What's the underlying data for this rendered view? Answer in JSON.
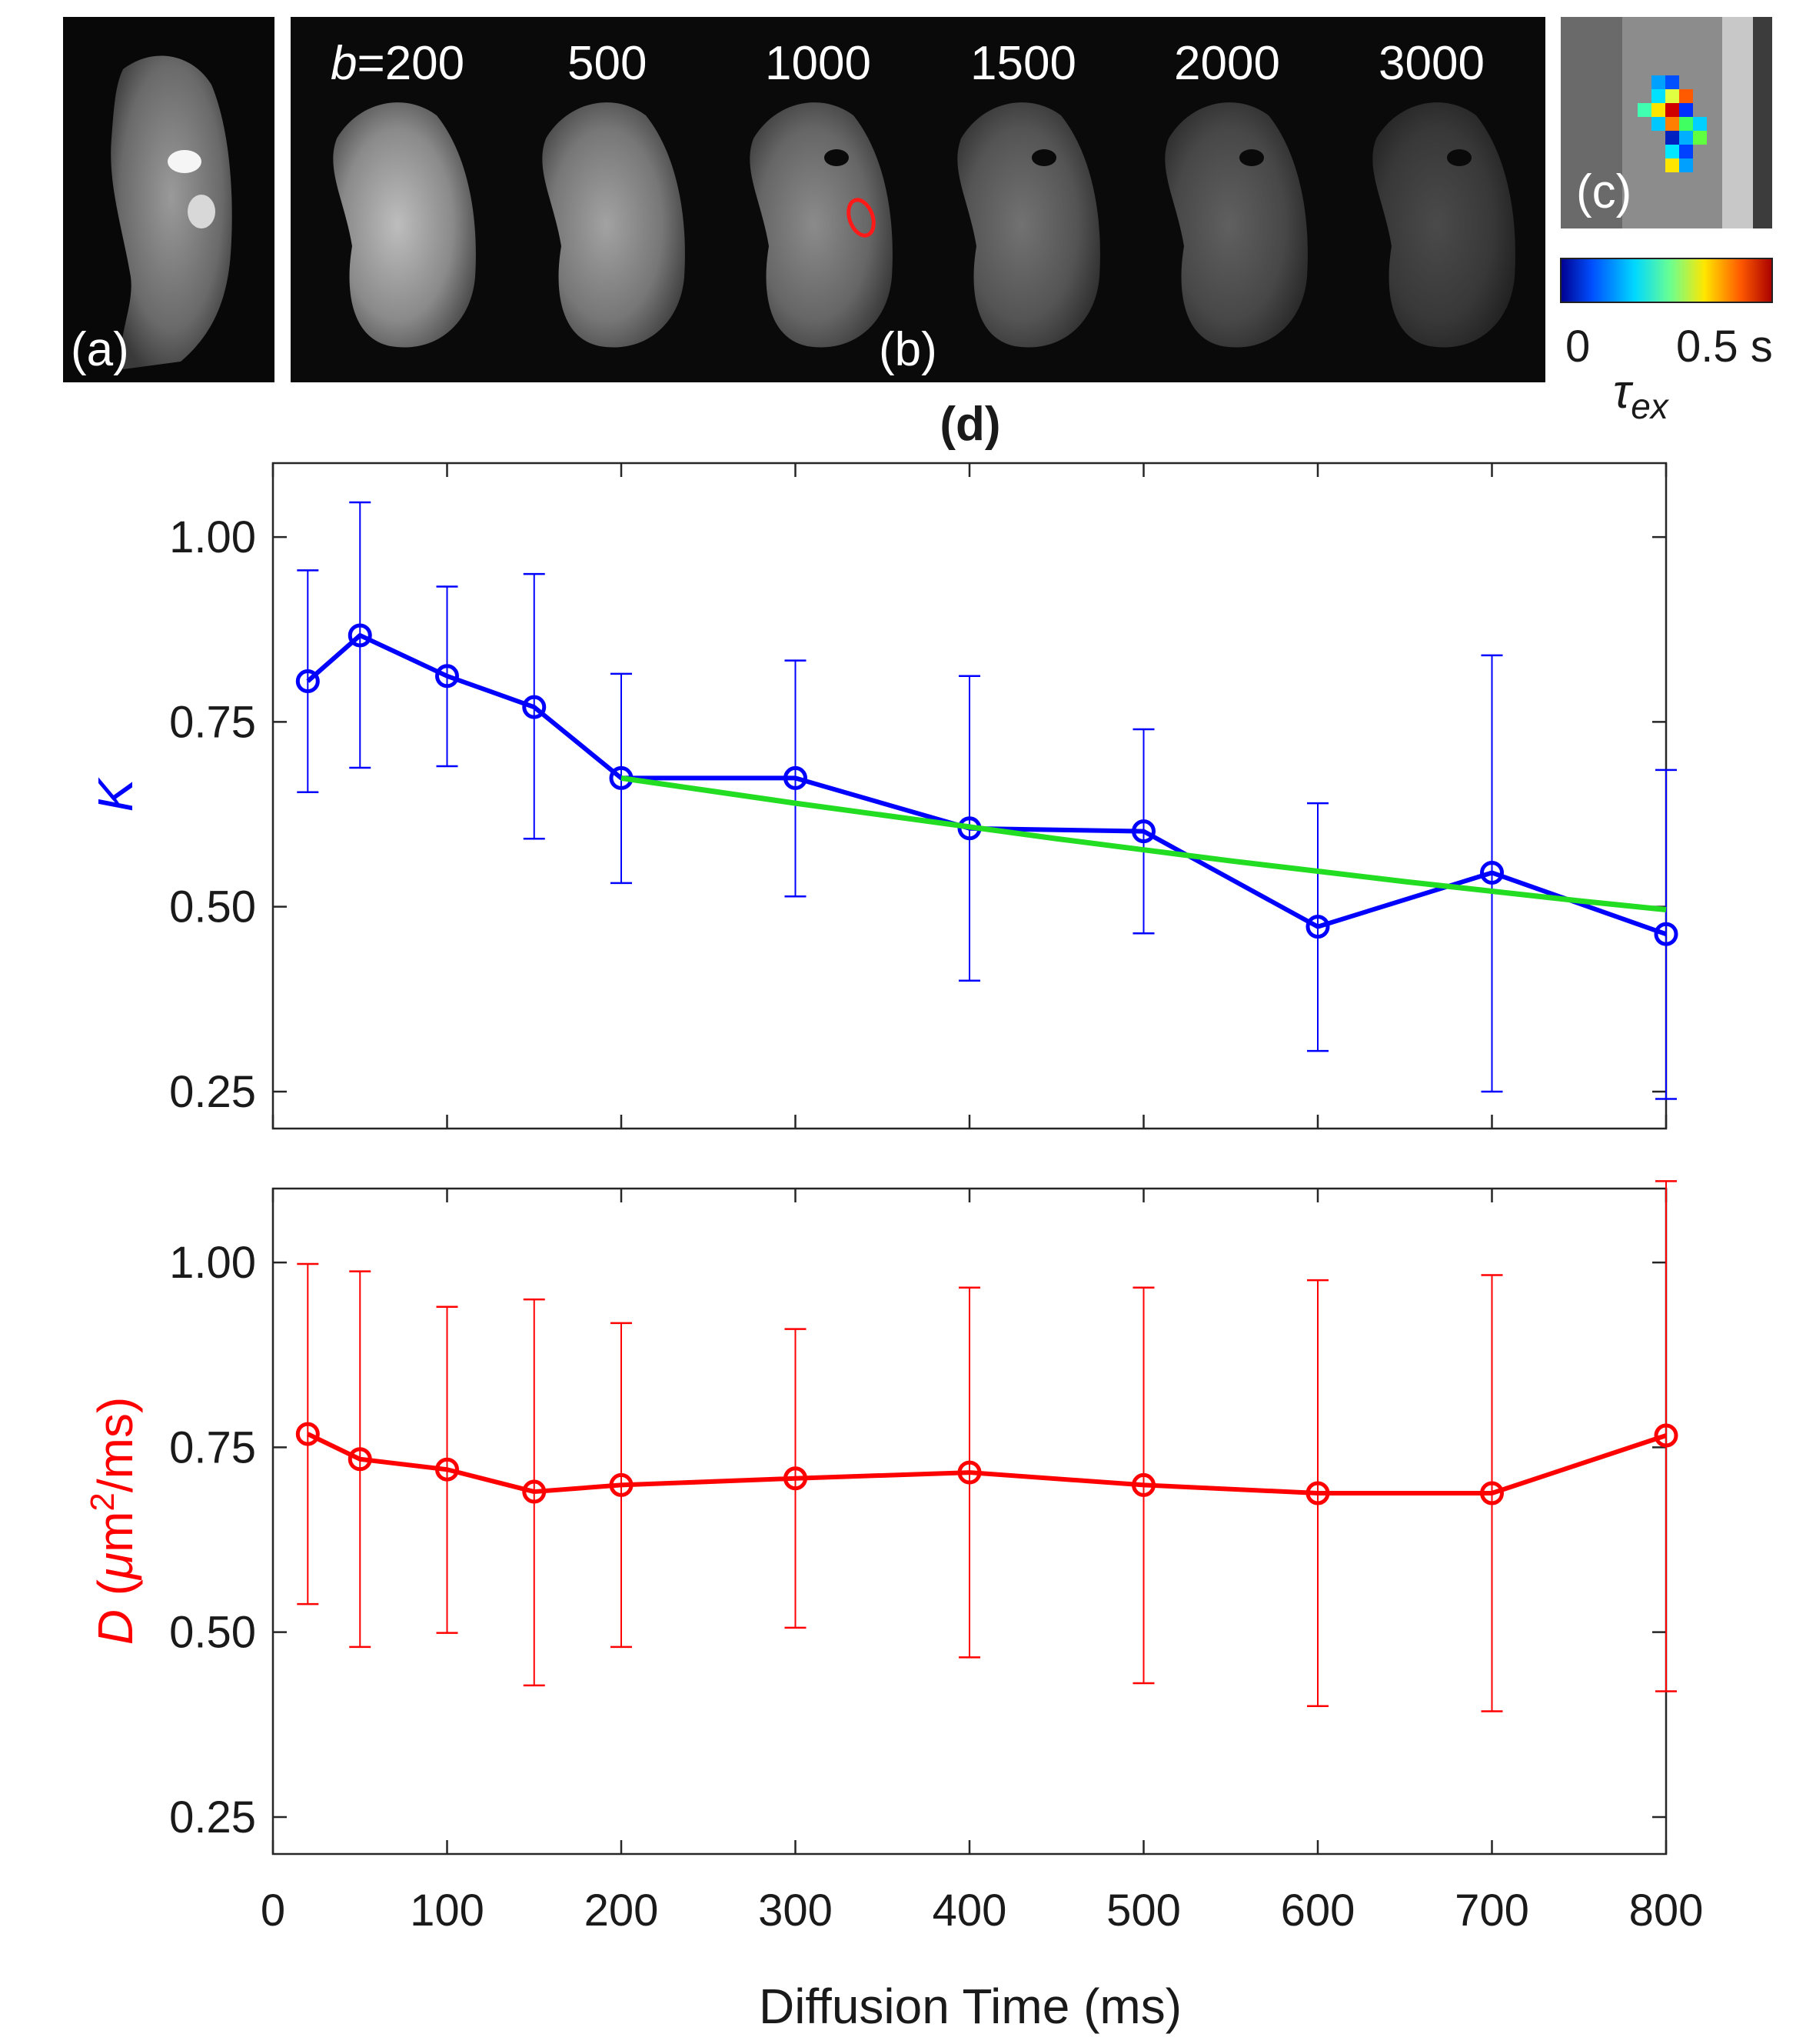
{
  "top_row": {
    "panel_a_label": "(a)",
    "panel_b_label": "(b)",
    "panel_c_label": "(c)",
    "b_prefix": "b",
    "b_values": [
      "=200",
      "500",
      "1000",
      "1500",
      "2000",
      "3000"
    ],
    "colorbar": {
      "min_label": "0",
      "max_label": "0.5 s",
      "symbol": "τ",
      "subscript": "ex",
      "colors": [
        "#00008f",
        "#0050ff",
        "#00d8ff",
        "#6cff8f",
        "#ffe600",
        "#ff5a00",
        "#a80000"
      ]
    }
  },
  "chart_title": "(d)",
  "chart_data": [
    {
      "type": "line",
      "name": "K",
      "ylabel": "K",
      "ylabel_color": "#0000ff",
      "ylim": [
        0.2,
        1.1
      ],
      "yticks": [
        0.25,
        0.5,
        0.75,
        1.0
      ],
      "ytick_labels": [
        "0.25",
        "0.50",
        "0.75",
        "1.00"
      ],
      "xlim": [
        0,
        800
      ],
      "series": [
        {
          "name": "K",
          "color": "#0000ff",
          "x": [
            20,
            50,
            100,
            150,
            200,
            300,
            400,
            500,
            600,
            700,
            800
          ],
          "values": [
            0.805,
            0.867,
            0.812,
            0.77,
            0.674,
            0.674,
            0.606,
            0.602,
            0.473,
            0.546,
            0.463
          ],
          "err_low": [
            0.655,
            0.688,
            0.69,
            0.592,
            0.532,
            0.514,
            0.4,
            0.464,
            0.305,
            0.25,
            0.24
          ],
          "err_high": [
            0.955,
            1.047,
            0.933,
            0.95,
            0.815,
            0.833,
            0.812,
            0.74,
            0.64,
            0.84,
            0.685
          ]
        },
        {
          "name": "fit",
          "color": "#22dd22",
          "x": [
            200,
            250,
            300,
            350,
            400,
            450,
            500,
            550,
            600,
            650,
            700,
            750,
            800
          ],
          "values": [
            0.674,
            0.657,
            0.64,
            0.624,
            0.608,
            0.592,
            0.577,
            0.562,
            0.548,
            0.534,
            0.521,
            0.508,
            0.496
          ]
        }
      ]
    },
    {
      "type": "line",
      "name": "D",
      "ylabel_var": "D",
      "ylabel_open": "(",
      "ylabel_mu": "μ",
      "ylabel_unit": "m",
      "ylabel_sup": "2",
      "ylabel_close": "/ms)",
      "ylabel_color": "#ff0000",
      "ylim": [
        0.2,
        1.1
      ],
      "yticks": [
        0.25,
        0.5,
        0.75,
        1.0
      ],
      "ytick_labels": [
        "0.25",
        "0.50",
        "0.75",
        "1.00"
      ],
      "xlim": [
        0,
        800
      ],
      "xticks": [
        0,
        100,
        200,
        300,
        400,
        500,
        600,
        700,
        800
      ],
      "xtick_labels": [
        "0",
        "100",
        "200",
        "300",
        "400",
        "500",
        "600",
        "700",
        "800"
      ],
      "xlabel": "Diffusion Time (ms)",
      "series": [
        {
          "name": "D",
          "color": "#ff0000",
          "x": [
            20,
            50,
            100,
            150,
            200,
            300,
            400,
            500,
            600,
            700,
            800
          ],
          "values": [
            0.768,
            0.734,
            0.72,
            0.69,
            0.699,
            0.708,
            0.716,
            0.699,
            0.688,
            0.688,
            0.766
          ],
          "err_low": [
            0.538,
            0.48,
            0.499,
            0.428,
            0.48,
            0.506,
            0.466,
            0.431,
            0.4,
            0.393,
            0.42
          ],
          "err_high": [
            0.998,
            0.988,
            0.94,
            0.95,
            0.918,
            0.91,
            0.966,
            0.966,
            0.976,
            0.983,
            1.11
          ]
        }
      ]
    }
  ]
}
